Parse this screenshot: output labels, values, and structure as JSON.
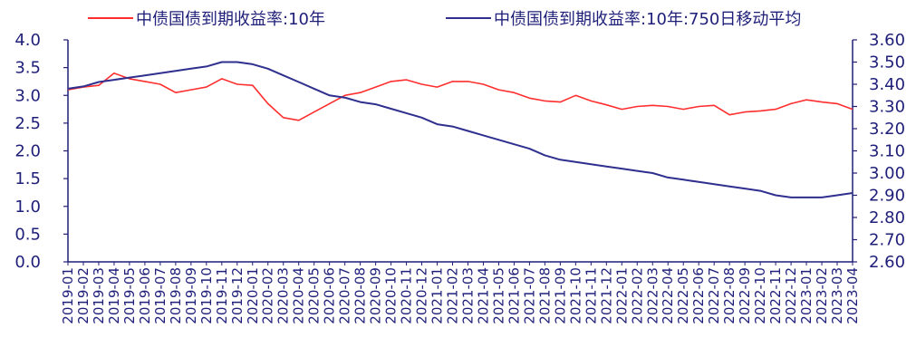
{
  "chart_data": {
    "type": "line",
    "title": "",
    "xlabel": "",
    "ylabel": "",
    "ylim_left": [
      0.0,
      4.0
    ],
    "ylim_right": [
      2.6,
      3.6
    ],
    "yticks_left": [
      "0.0",
      "0.5",
      "1.0",
      "1.5",
      "2.0",
      "2.5",
      "3.0",
      "3.5",
      "4.0"
    ],
    "yticks_right": [
      "2.60",
      "2.70",
      "2.80",
      "2.90",
      "3.00",
      "3.10",
      "3.20",
      "3.30",
      "3.40",
      "3.50",
      "3.60"
    ],
    "x": [
      "2019-01",
      "2019-02",
      "2019-03",
      "2019-04",
      "2019-05",
      "2019-06",
      "2019-07",
      "2019-08",
      "2019-09",
      "2019-10",
      "2019-11",
      "2019-12",
      "2020-01",
      "2020-02",
      "2020-03",
      "2020-04",
      "2020-05",
      "2020-06",
      "2020-07",
      "2020-08",
      "2020-09",
      "2020-10",
      "2020-11",
      "2020-12",
      "2021-01",
      "2021-02",
      "2021-03",
      "2021-04",
      "2021-05",
      "2021-06",
      "2021-07",
      "2021-08",
      "2021-09",
      "2021-10",
      "2021-11",
      "2021-12",
      "2022-01",
      "2022-02",
      "2022-03",
      "2022-04",
      "2022-05",
      "2022-06",
      "2022-07",
      "2022-08",
      "2022-09",
      "2022-10",
      "2022-11",
      "2022-12",
      "2023-01",
      "2023-02",
      "2023-03",
      "2023-04"
    ],
    "legend_position": "top",
    "grid": false,
    "series": [
      {
        "name": "中债国债到期收益率:10年",
        "axis": "left",
        "color": "#ff2e2e",
        "values": [
          3.1,
          3.15,
          3.18,
          3.4,
          3.3,
          3.25,
          3.2,
          3.05,
          3.1,
          3.15,
          3.3,
          3.2,
          3.18,
          2.85,
          2.6,
          2.55,
          2.7,
          2.85,
          3.0,
          3.05,
          3.15,
          3.25,
          3.28,
          3.2,
          3.15,
          3.25,
          3.25,
          3.2,
          3.1,
          3.05,
          2.95,
          2.9,
          2.88,
          3.0,
          2.9,
          2.83,
          2.75,
          2.8,
          2.82,
          2.8,
          2.75,
          2.8,
          2.82,
          2.65,
          2.7,
          2.72,
          2.75,
          2.85,
          2.92,
          2.88,
          2.85,
          2.75
        ]
      },
      {
        "name": "中债国债到期收益率:10年:750日移动平均",
        "axis": "right",
        "color": "#2f2f8f",
        "values": [
          3.38,
          3.39,
          3.41,
          3.42,
          3.43,
          3.44,
          3.45,
          3.46,
          3.47,
          3.48,
          3.5,
          3.5,
          3.49,
          3.47,
          3.44,
          3.41,
          3.38,
          3.35,
          3.34,
          3.32,
          3.31,
          3.29,
          3.27,
          3.25,
          3.22,
          3.21,
          3.19,
          3.17,
          3.15,
          3.13,
          3.11,
          3.08,
          3.06,
          3.05,
          3.04,
          3.03,
          3.02,
          3.01,
          3.0,
          2.98,
          2.97,
          2.96,
          2.95,
          2.94,
          2.93,
          2.92,
          2.9,
          2.89,
          2.89,
          2.89,
          2.9,
          2.91
        ]
      }
    ]
  }
}
